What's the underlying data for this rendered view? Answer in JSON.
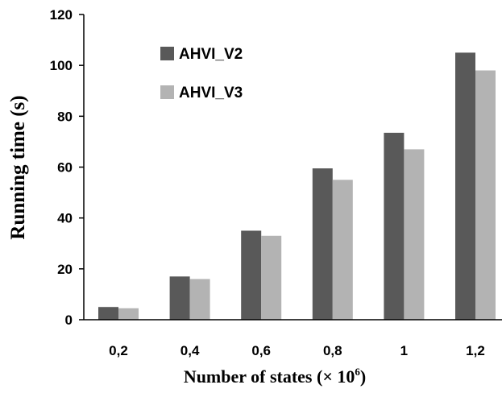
{
  "chart_data": {
    "type": "bar",
    "categories": [
      "0,2",
      "0,4",
      "0,6",
      "0,8",
      "1",
      "1,2"
    ],
    "series": [
      {
        "name": "AHVI_V2",
        "color": "#595959",
        "values": [
          5,
          17,
          35,
          59.5,
          73.5,
          105
        ]
      },
      {
        "name": "AHVI_V3",
        "color": "#b3b3b3",
        "values": [
          4.5,
          16,
          33,
          55,
          67,
          98
        ]
      }
    ],
    "xlabel": "Number of states (× 10",
    "xlabel_sup": "6",
    "xlabel_close": ")",
    "ylabel": "Running time  (s)",
    "ylim": [
      0,
      120
    ],
    "yticks": [
      "0",
      "20",
      "40",
      "60",
      "80",
      "100",
      "120"
    ],
    "legend_position": "top-left",
    "grid": false
  }
}
